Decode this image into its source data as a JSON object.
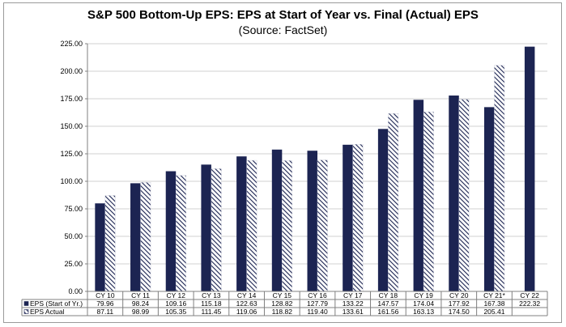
{
  "chart_data": {
    "type": "bar",
    "title": "S&P 500 Bottom-Up EPS: EPS at Start of Year vs. Final (Actual) EPS",
    "subtitle": "(Source: FactSet)",
    "categories": [
      "CY 10",
      "CY 11",
      "CY 12",
      "CY 13",
      "CY 14",
      "CY 15",
      "CY 16",
      "CY 17",
      "CY 18",
      "CY 19",
      "CY 20",
      "CY 21*",
      "CY 22"
    ],
    "series": [
      {
        "name": "EPS (Start of Yr.)",
        "color": "#1c2452",
        "pattern": "solid",
        "values": [
          79.96,
          98.24,
          109.16,
          115.18,
          122.63,
          128.82,
          127.79,
          133.22,
          147.57,
          174.04,
          177.92,
          167.38,
          222.32
        ],
        "labels": [
          "79.96",
          "98.24",
          "109.16",
          "115.18",
          "122.63",
          "128.82",
          "127.79",
          "133.22",
          "147.57",
          "174.04",
          "177.92",
          "167.38",
          "222.32"
        ]
      },
      {
        "name": "EPS Actual",
        "color": "#1c2452",
        "pattern": "diagonal-hatch",
        "values": [
          87.11,
          98.99,
          105.35,
          111.45,
          119.06,
          118.82,
          119.4,
          133.61,
          161.56,
          163.13,
          174.5,
          205.41,
          null
        ],
        "labels": [
          "87.11",
          "98.99",
          "105.35",
          "111.45",
          "119.06",
          "118.82",
          "119.40",
          "133.61",
          "161.56",
          "163.13",
          "174.50",
          "205.41",
          ""
        ]
      }
    ],
    "ylim": [
      0,
      225
    ],
    "yticks": [
      "0.00",
      "25.00",
      "50.00",
      "75.00",
      "100.00",
      "125.00",
      "150.00",
      "175.00",
      "200.00",
      "225.00"
    ],
    "grid": true,
    "legend": "data-table",
    "xlabel": "",
    "ylabel": ""
  }
}
